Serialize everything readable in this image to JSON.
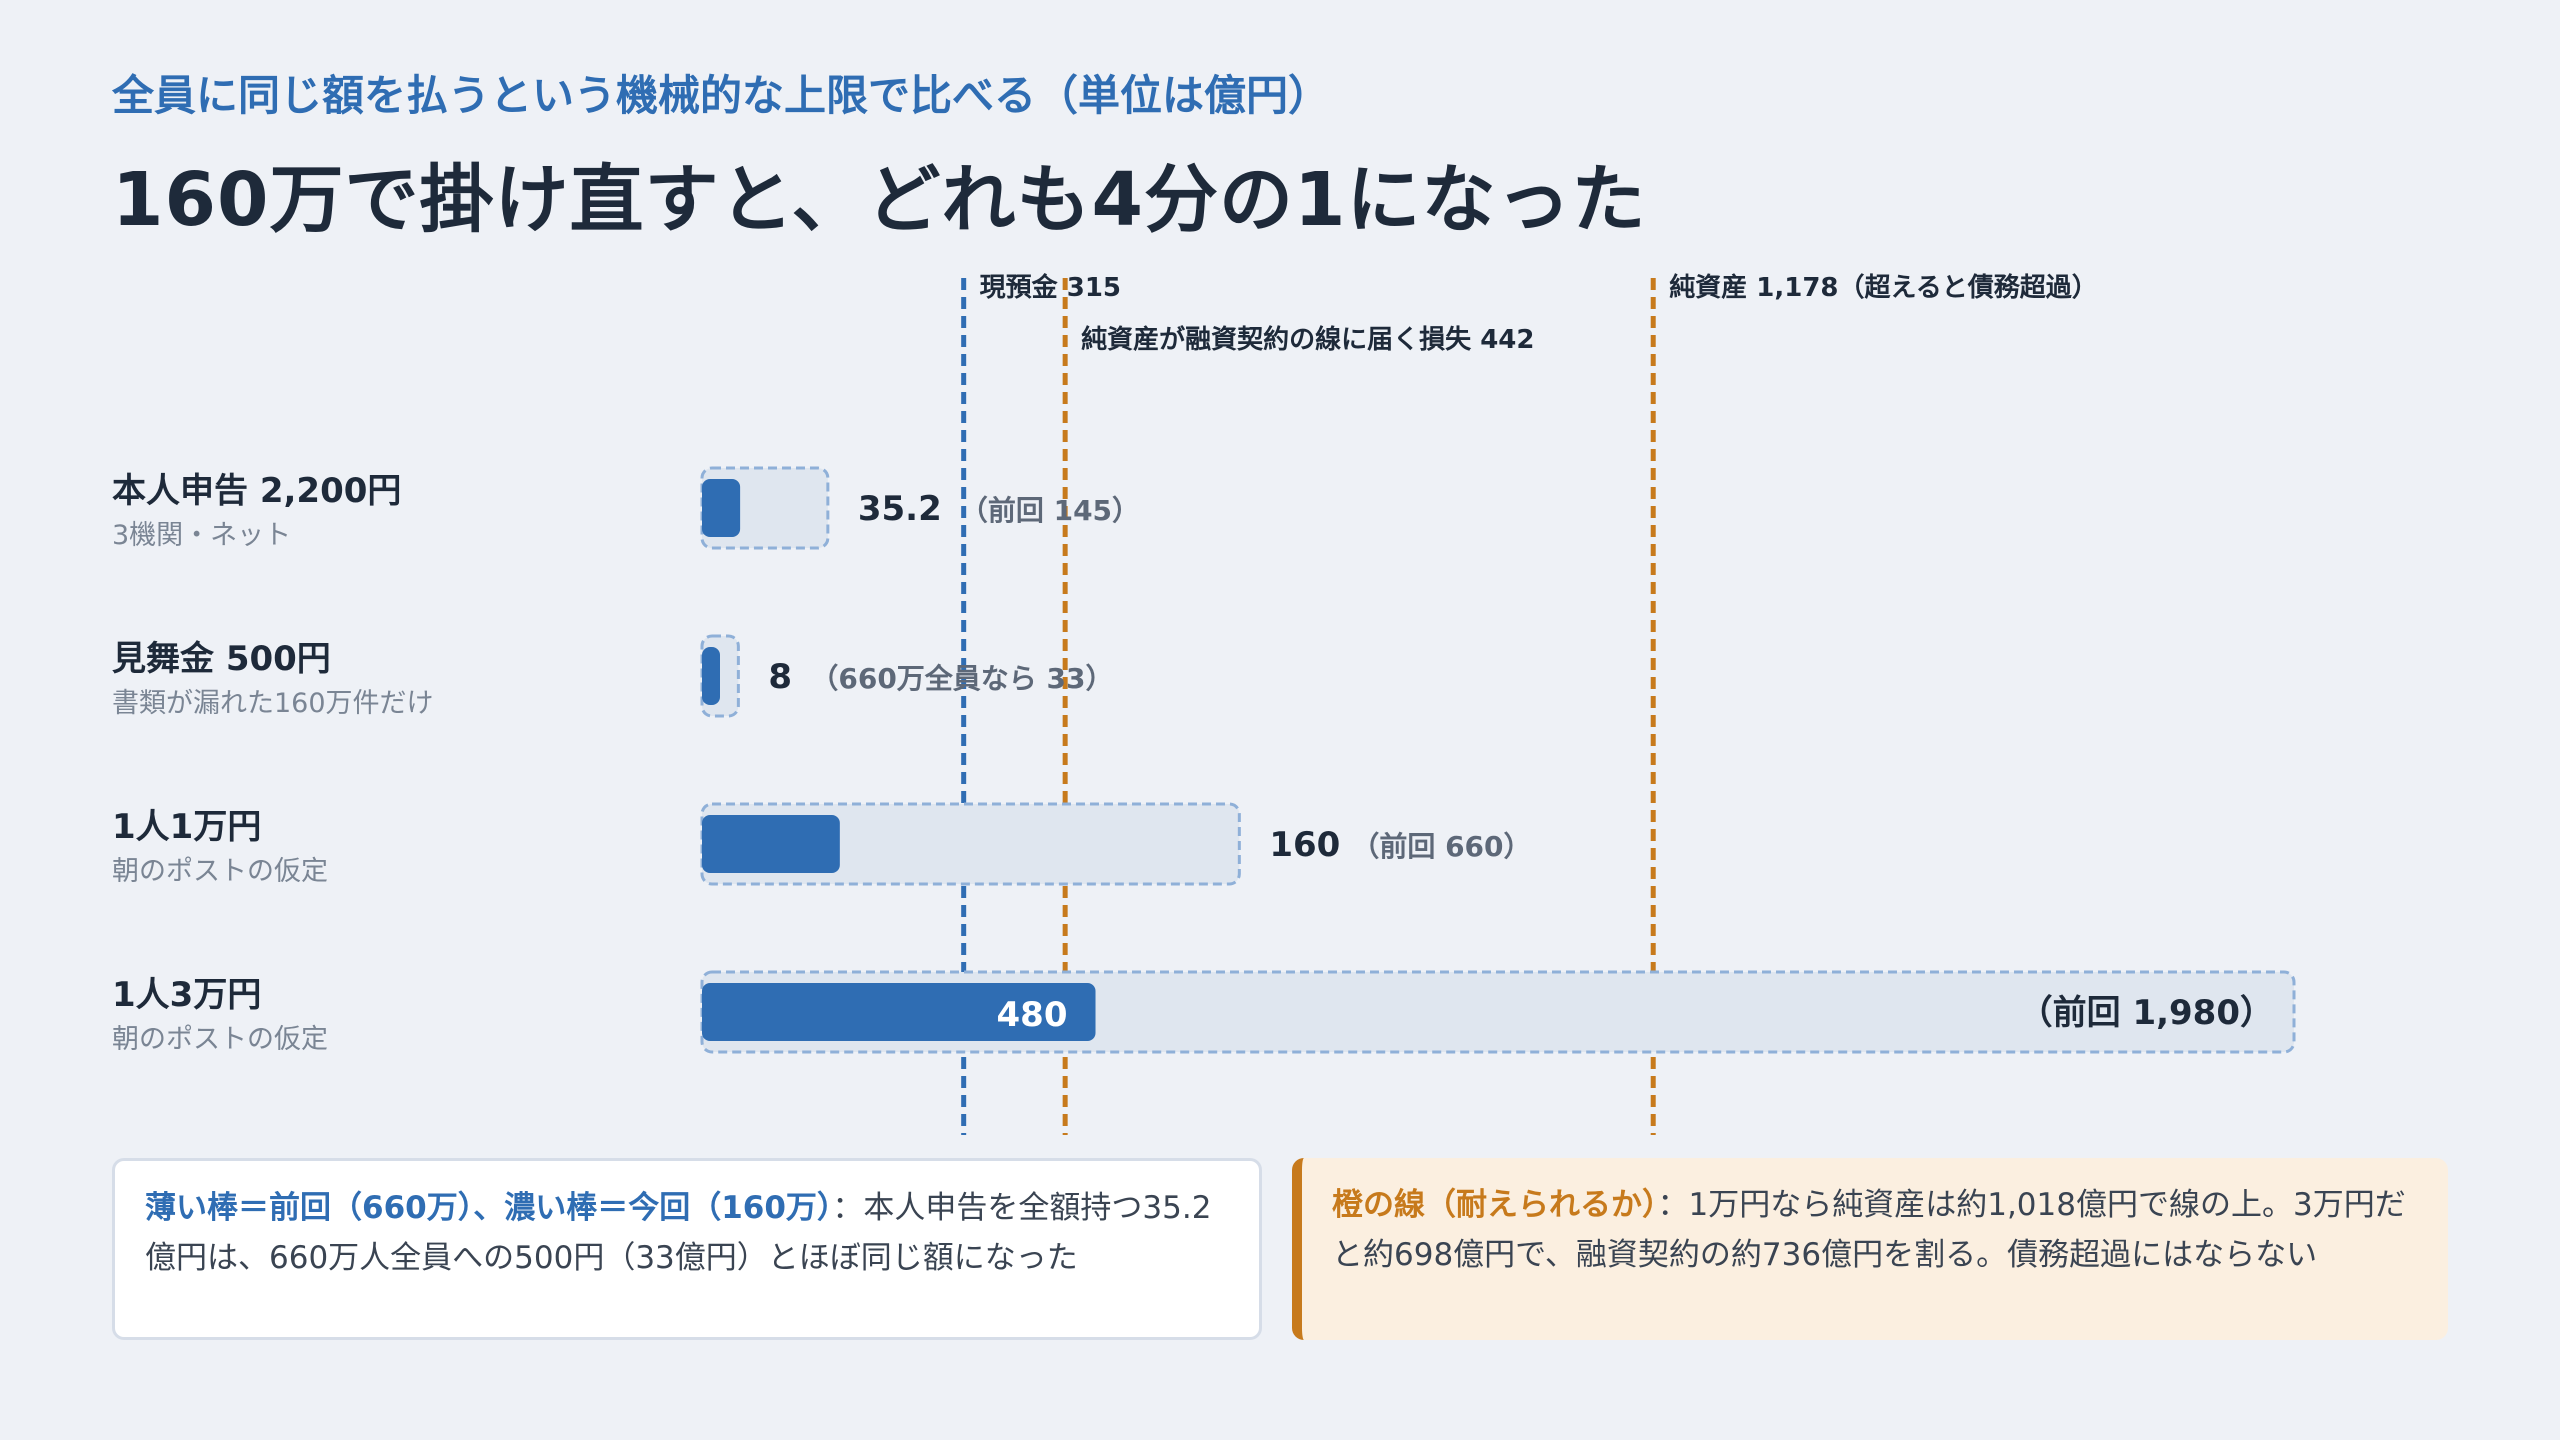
{
  "header": {
    "subtitle": "全員に同じ額を払うという機械的な上限で比べる（単位は億円）",
    "title": "160万で掛け直すと、どれも4分の1になった"
  },
  "chart_data": {
    "type": "bar",
    "unit": "億円",
    "xlim": [
      0,
      1980
    ],
    "rows": [
      {
        "label": "本人申告 2,200円",
        "sublabel": "3機関・ネット",
        "current": 35.2,
        "previous": 145,
        "value_text": "35.2",
        "previous_text": "（前回 145）"
      },
      {
        "label": "見舞金 500円",
        "sublabel": "書類が漏れた160万件だけ",
        "current": 8,
        "previous": 33,
        "value_text": "8",
        "previous_text": "（660万全員なら 33）"
      },
      {
        "label": "1人1万円",
        "sublabel": "朝のポストの仮定",
        "current": 160,
        "previous": 660,
        "value_text": "160",
        "previous_text": "（前回 660）"
      },
      {
        "label": "1人3万円",
        "sublabel": "朝のポストの仮定",
        "current": 480,
        "previous": 1980,
        "value_text": "480",
        "previous_text": "（前回 1,980）"
      }
    ],
    "reference_lines": [
      {
        "value": 315,
        "label": "現預金 315",
        "color": "#2f6db3"
      },
      {
        "value": 442,
        "label": "純資産が融資契約の線に届く損失 442",
        "color": "#c77a1c"
      },
      {
        "value": 1178,
        "label": "純資産 1,178（超えると債務超過）",
        "color": "#c77a1c"
      }
    ],
    "colors": {
      "current_bar": "#2f6db3",
      "previous_bar_fill": "#dfe6ef",
      "previous_bar_border": "#8fb0d8"
    }
  },
  "notes": {
    "left": {
      "highlight": "薄い棒＝前回（660万）、濃い棒＝今回（160万）",
      "text": "：本人申告を全額持つ35.2億円は、660万人全員への500円（33億円）とほぼ同じ額になった"
    },
    "right": {
      "highlight": "橙の線（耐えられるか）",
      "text": "：1万円なら純資産は約1,018億円で線の上。3万円だと約698億円で、融資契約の約736億円を割る。債務超過にはならない"
    }
  }
}
